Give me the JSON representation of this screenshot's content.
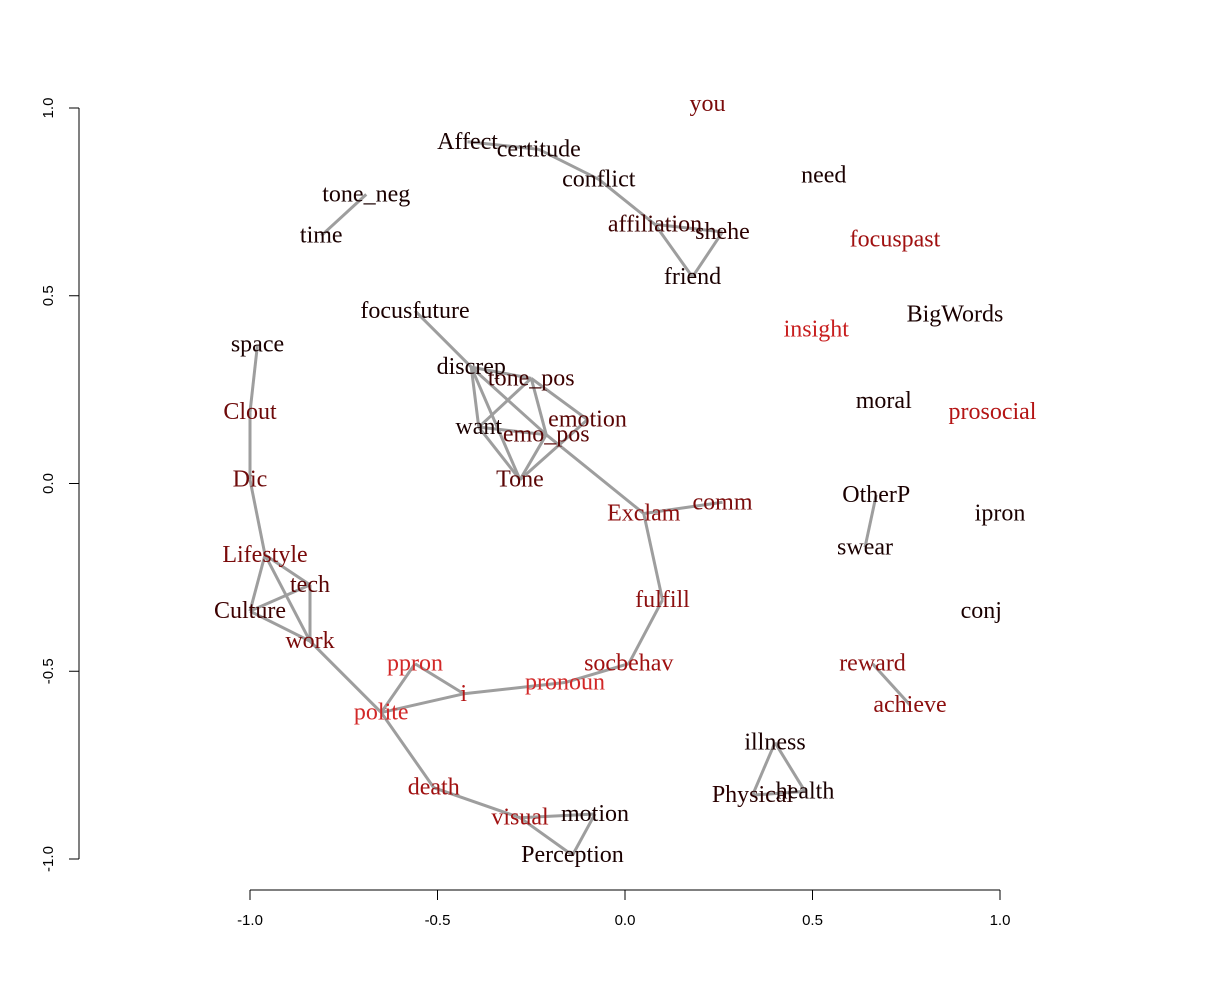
{
  "chart_data": {
    "type": "network",
    "xlim": [
      -1.0,
      1.0
    ],
    "ylim": [
      -1.0,
      1.0
    ],
    "x_ticks": [
      -1.0,
      -0.5,
      0.0,
      0.5,
      1.0
    ],
    "x_tick_labels": [
      "-1.0",
      "-0.5",
      "0.0",
      "0.5",
      "1.0"
    ],
    "y_ticks": [
      -1.0,
      -0.5,
      0.0,
      0.5,
      1.0
    ],
    "y_tick_labels": [
      "-1.0",
      "-0.5",
      "0.0",
      "0.5",
      "1.0"
    ],
    "grid": false,
    "edge_color": "#9e9e9e",
    "nodes": [
      {
        "label": "you",
        "x": 0.22,
        "y": 1.01,
        "color": "#7a0a0a"
      },
      {
        "label": "Affect",
        "x": -0.42,
        "y": 0.91,
        "color": "#1a0000"
      },
      {
        "label": "certitude",
        "x": -0.23,
        "y": 0.89,
        "color": "#1a0000"
      },
      {
        "label": "conflict",
        "x": -0.07,
        "y": 0.81,
        "color": "#1a0000"
      },
      {
        "label": "need",
        "x": 0.53,
        "y": 0.82,
        "color": "#1a0000"
      },
      {
        "label": "tone_neg",
        "x": -0.69,
        "y": 0.77,
        "color": "#1a0000"
      },
      {
        "label": "affiliation",
        "x": 0.08,
        "y": 0.69,
        "color": "#3d0000"
      },
      {
        "label": "shehe",
        "x": 0.26,
        "y": 0.67,
        "color": "#2a0000"
      },
      {
        "label": "time",
        "x": -0.81,
        "y": 0.66,
        "color": "#1a0000"
      },
      {
        "label": "focuspast",
        "x": 0.72,
        "y": 0.65,
        "color": "#a01010"
      },
      {
        "label": "friend",
        "x": 0.18,
        "y": 0.55,
        "color": "#1a0000"
      },
      {
        "label": "BigWords",
        "x": 0.88,
        "y": 0.45,
        "color": "#1a0000"
      },
      {
        "label": "focusfuture",
        "x": -0.56,
        "y": 0.46,
        "color": "#1a0000"
      },
      {
        "label": "insight",
        "x": 0.51,
        "y": 0.41,
        "color": "#c81e1e"
      },
      {
        "label": "space",
        "x": -0.98,
        "y": 0.37,
        "color": "#1a0000"
      },
      {
        "label": "discrep",
        "x": -0.41,
        "y": 0.31,
        "color": "#1a0000"
      },
      {
        "label": "tone_pos",
        "x": -0.25,
        "y": 0.28,
        "color": "#3d0000"
      },
      {
        "label": "moral",
        "x": 0.69,
        "y": 0.22,
        "color": "#1a0000"
      },
      {
        "label": "Clout",
        "x": -1.0,
        "y": 0.19,
        "color": "#6e0a0a"
      },
      {
        "label": "prosocial",
        "x": 0.98,
        "y": 0.19,
        "color": "#b41414"
      },
      {
        "label": "emotion",
        "x": -0.1,
        "y": 0.17,
        "color": "#5a0505"
      },
      {
        "label": "want",
        "x": -0.39,
        "y": 0.15,
        "color": "#1a0000"
      },
      {
        "label": "emo_pos",
        "x": -0.21,
        "y": 0.13,
        "color": "#5a0505"
      },
      {
        "label": "Dic",
        "x": -1.0,
        "y": 0.01,
        "color": "#6e0a0a"
      },
      {
        "label": "Tone",
        "x": -0.28,
        "y": 0.01,
        "color": "#5a0505"
      },
      {
        "label": "OtherP",
        "x": 0.67,
        "y": -0.03,
        "color": "#1a0000"
      },
      {
        "label": "comm",
        "x": 0.26,
        "y": -0.05,
        "color": "#7a0a0a"
      },
      {
        "label": "Exclam",
        "x": 0.05,
        "y": -0.08,
        "color": "#8c0f0f"
      },
      {
        "label": "ipron",
        "x": 1.0,
        "y": -0.08,
        "color": "#1a0000"
      },
      {
        "label": "swear",
        "x": 0.64,
        "y": -0.17,
        "color": "#1a0000"
      },
      {
        "label": "Lifestyle",
        "x": -0.96,
        "y": -0.19,
        "color": "#7a0a0a"
      },
      {
        "label": "tech",
        "x": -0.84,
        "y": -0.27,
        "color": "#5a0505"
      },
      {
        "label": "fulfill",
        "x": 0.1,
        "y": -0.31,
        "color": "#8c0f0f"
      },
      {
        "label": "Culture",
        "x": -1.0,
        "y": -0.34,
        "color": "#3d0000"
      },
      {
        "label": "conj",
        "x": 0.95,
        "y": -0.34,
        "color": "#1a0000"
      },
      {
        "label": "work",
        "x": -0.84,
        "y": -0.42,
        "color": "#7a0a0a"
      },
      {
        "label": "ppron",
        "x": -0.56,
        "y": -0.48,
        "color": "#d22828"
      },
      {
        "label": "socbehav",
        "x": 0.01,
        "y": -0.48,
        "color": "#a01010"
      },
      {
        "label": "reward",
        "x": 0.66,
        "y": -0.48,
        "color": "#8c0f0f"
      },
      {
        "label": "i",
        "x": -0.43,
        "y": -0.56,
        "color": "#b41414"
      },
      {
        "label": "pronoun",
        "x": -0.16,
        "y": -0.53,
        "color": "#d22828"
      },
      {
        "label": "achieve",
        "x": 0.76,
        "y": -0.59,
        "color": "#8c0f0f"
      },
      {
        "label": "polite",
        "x": -0.65,
        "y": -0.61,
        "color": "#d22828"
      },
      {
        "label": "illness",
        "x": 0.4,
        "y": -0.69,
        "color": "#1a0000"
      },
      {
        "label": "Physical",
        "x": 0.34,
        "y": -0.83,
        "color": "#2a0000"
      },
      {
        "label": "health",
        "x": 0.48,
        "y": -0.82,
        "color": "#1a0000"
      },
      {
        "label": "death",
        "x": -0.51,
        "y": -0.81,
        "color": "#a01010"
      },
      {
        "label": "visual",
        "x": -0.28,
        "y": -0.89,
        "color": "#a01010"
      },
      {
        "label": "motion",
        "x": -0.08,
        "y": -0.88,
        "color": "#1a0000"
      },
      {
        "label": "Perception",
        "x": -0.14,
        "y": -0.99,
        "color": "#1a0000"
      }
    ],
    "edges": [
      [
        "Affect",
        "certitude"
      ],
      [
        "certitude",
        "conflict"
      ],
      [
        "conflict",
        "affiliation"
      ],
      [
        "affiliation",
        "shehe"
      ],
      [
        "affiliation",
        "friend"
      ],
      [
        "shehe",
        "friend"
      ],
      [
        "tone_neg",
        "time"
      ],
      [
        "focusfuture",
        "discrep"
      ],
      [
        "discrep",
        "tone_pos"
      ],
      [
        "discrep",
        "want"
      ],
      [
        "discrep",
        "emo_pos"
      ],
      [
        "discrep",
        "Tone"
      ],
      [
        "tone_pos",
        "emotion"
      ],
      [
        "tone_pos",
        "want"
      ],
      [
        "tone_pos",
        "emo_pos"
      ],
      [
        "want",
        "emo_pos"
      ],
      [
        "want",
        "Tone"
      ],
      [
        "emotion",
        "Tone"
      ],
      [
        "emo_pos",
        "Tone"
      ],
      [
        "emo_pos",
        "Exclam"
      ],
      [
        "Exclam",
        "comm"
      ],
      [
        "Exclam",
        "fulfill"
      ],
      [
        "fulfill",
        "socbehav"
      ],
      [
        "socbehav",
        "pronoun"
      ],
      [
        "pronoun",
        "i"
      ],
      [
        "i",
        "ppron"
      ],
      [
        "i",
        "polite"
      ],
      [
        "ppron",
        "polite"
      ],
      [
        "polite",
        "work"
      ],
      [
        "polite",
        "death"
      ],
      [
        "death",
        "visual"
      ],
      [
        "visual",
        "motion"
      ],
      [
        "motion",
        "Perception"
      ],
      [
        "visual",
        "Perception"
      ],
      [
        "space",
        "Clout"
      ],
      [
        "Clout",
        "Dic"
      ],
      [
        "Dic",
        "Lifestyle"
      ],
      [
        "Lifestyle",
        "tech"
      ],
      [
        "Lifestyle",
        "Culture"
      ],
      [
        "Lifestyle",
        "work"
      ],
      [
        "tech",
        "Culture"
      ],
      [
        "tech",
        "work"
      ],
      [
        "Culture",
        "work"
      ],
      [
        "OtherP",
        "swear"
      ],
      [
        "reward",
        "achieve"
      ],
      [
        "illness",
        "Physical"
      ],
      [
        "illness",
        "health"
      ],
      [
        "Physical",
        "health"
      ]
    ]
  }
}
